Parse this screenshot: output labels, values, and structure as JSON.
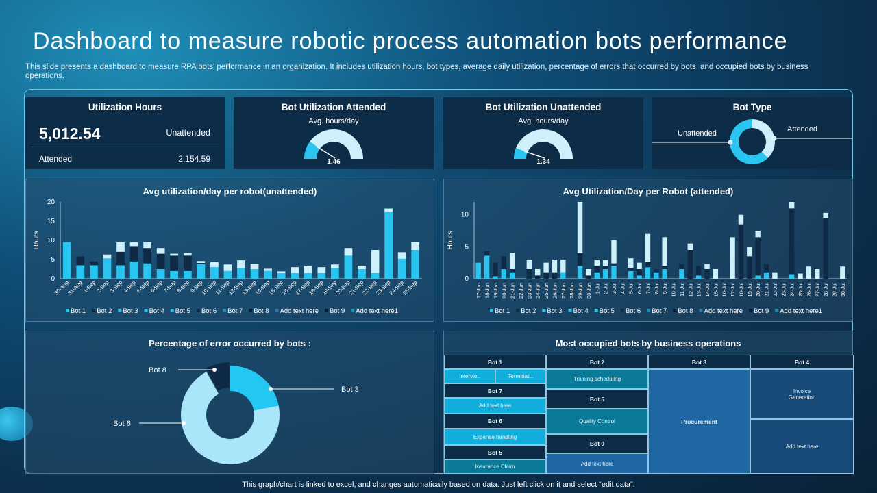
{
  "title": "Dashboard to measure robotic process automation bots performance",
  "subtitle": "This slide presents a dashboard to measure RPA bots' performance in an organization. It includes utilization hours, bot types, average daily utilization, percentage of errors that occurred by bots, and occupied bots by business operations.",
  "colors": {
    "cyan": "#29c4ef",
    "dark": "#0e2a47",
    "light": "#cdf0fb",
    "card": "#0d2c48"
  },
  "utilization": {
    "title": "Utilization Hours",
    "total": "5,012.54",
    "unattended_label": "Unattended",
    "attended_label": "Attended",
    "attended_value": "2,154.59"
  },
  "attended": {
    "title": "Bot Utilization Attended",
    "subtitle": "Avg. hours/day",
    "value": "1.46",
    "fill": 0.2
  },
  "unattended": {
    "title": "Bot Utilization Unattended",
    "subtitle": "Avg. hours/day",
    "value": "1.34",
    "fill": 0.12
  },
  "bot_type": {
    "title": "Bot Type",
    "slices": [
      {
        "label": "Attended",
        "pct": 38
      },
      {
        "label": "Unattended",
        "pct": 62
      }
    ]
  },
  "legend": [
    "Bot 1",
    "Bot 2",
    "Bot 3",
    "Bot 4",
    "Bot 5",
    "Bot 6",
    "Bot 7",
    "Bot 8",
    "Add text here",
    "Bot 9",
    "Add text here1"
  ],
  "legend_colors": [
    "#29c4ef",
    "#0e2a47",
    "#29c4ef",
    "#29c4ef",
    "#29c4ef",
    "#0e2a47",
    "#1a8fb5",
    "#071c30",
    "#1e7fb0",
    "#071c30",
    "#1a8fb5"
  ],
  "chart_data": [
    {
      "type": "bar",
      "stacked": true,
      "title": "Avg utilization/day per robot(unattended)",
      "ylabel": "Hours",
      "ylim": [
        0,
        20
      ],
      "yticks": [
        0,
        5,
        10,
        15,
        20
      ],
      "categories": [
        "30-Aug",
        "31-Aug",
        "1-Sep",
        "2-Sep",
        "3-Sep",
        "4-Sep",
        "5-Sep",
        "6-Sep",
        "7-Sep",
        "8-Sep",
        "9-Sep",
        "10-Sep",
        "11-Sep",
        "12-Sep",
        "13-Sep",
        "14-Sep",
        "15-Sep",
        "16-Sep",
        "17-Sep",
        "18-Sep",
        "19-Sep",
        "20-Sep",
        "21-Sep",
        "22-Sep",
        "23-Sep",
        "24-Sep",
        "25-Sep"
      ],
      "stacks": [
        [
          9.5,
          0,
          0
        ],
        [
          3.5,
          2.3,
          0
        ],
        [
          3.5,
          1,
          0
        ],
        [
          5.3,
          0,
          1
        ],
        [
          3.5,
          3.5,
          2.5
        ],
        [
          4.5,
          4,
          1
        ],
        [
          4,
          4,
          1.5
        ],
        [
          2.5,
          4,
          1.5
        ],
        [
          2,
          4,
          0.5
        ],
        [
          2,
          4,
          0.7
        ],
        [
          3.8,
          0.3,
          0.5
        ],
        [
          3,
          0,
          1.3
        ],
        [
          2,
          0,
          1.7
        ],
        [
          2.8,
          0,
          2
        ],
        [
          2.5,
          0,
          1.4
        ],
        [
          2,
          0,
          0.6
        ],
        [
          1.5,
          0,
          0.4
        ],
        [
          1.5,
          0,
          1.5
        ],
        [
          1.5,
          0,
          1.9
        ],
        [
          1.5,
          0,
          1.5
        ],
        [
          2.8,
          0,
          0.9
        ],
        [
          6,
          0,
          2
        ],
        [
          2.5,
          0,
          0.9
        ],
        [
          1.5,
          0,
          6
        ],
        [
          17.5,
          0,
          0.8
        ],
        [
          5.2,
          0,
          1.7
        ],
        [
          7.5,
          0,
          2
        ]
      ]
    },
    {
      "type": "bar",
      "stacked": true,
      "title": "Avg Utilization/Day per Robot (attended)",
      "ylabel": "Hours",
      "ylim": [
        0,
        12
      ],
      "yticks": [
        0,
        5,
        10
      ],
      "categories": [
        "17-Jun",
        "18-Jun",
        "19-Jun",
        "20-Jun",
        "21-Jun",
        "22-Jun",
        "23-Jun",
        "24-Jun",
        "25-Jun",
        "26-Jun",
        "27-Jun",
        "28-Jun",
        "29-Jun",
        "30-Jun",
        "1-Jul",
        "2-Jul",
        "3-Jul",
        "4-Jul",
        "5-Jul",
        "6-Jul",
        "7-Jul",
        "8-Jul",
        "9-Jul",
        "10-Jul",
        "11-Jul",
        "12-Jul",
        "13-Jul",
        "14-Jul",
        "15-Jul",
        "16-Jul",
        "17-Jul",
        "18-Jul",
        "19-Jul",
        "20-Jul",
        "21-Jul",
        "22-Jul",
        "23-Jul",
        "24-Jul",
        "25-Jul",
        "26-Jul",
        "27-Jul",
        "28-Jul",
        "29-Jul",
        "30-Jul"
      ],
      "stacks": [
        [
          2.5,
          0,
          0
        ],
        [
          3.6,
          0.7,
          0
        ],
        [
          0.4,
          2.1,
          0
        ],
        [
          1.5,
          2,
          0
        ],
        [
          1,
          0.5,
          2.5
        ],
        [
          0,
          0,
          0
        ],
        [
          0,
          1.5,
          1.5
        ],
        [
          0,
          0.5,
          1
        ],
        [
          0,
          1,
          1.5
        ],
        [
          0,
          1,
          2
        ],
        [
          1,
          0,
          2
        ],
        [
          0,
          0,
          0
        ],
        [
          2,
          2,
          8
        ],
        [
          0,
          0.5,
          1
        ],
        [
          1,
          1,
          1
        ],
        [
          1.5,
          0.5,
          0.9
        ],
        [
          2,
          0.4,
          3.6
        ],
        [
          0,
          0,
          0
        ],
        [
          1.2,
          0.5,
          1.5
        ],
        [
          0.5,
          1,
          1
        ],
        [
          1.8,
          0.8,
          4.4
        ],
        [
          1,
          0.5,
          0
        ],
        [
          1.5,
          0.5,
          4.5
        ],
        [
          0,
          0,
          0
        ],
        [
          1.5,
          0.8,
          0
        ],
        [
          0,
          4.5,
          1
        ],
        [
          0.5,
          1.5,
          0
        ],
        [
          0,
          1.5,
          0.8
        ],
        [
          0,
          0,
          1.5
        ],
        [
          0,
          0,
          0
        ],
        [
          0,
          0,
          6.5
        ],
        [
          0,
          8.5,
          1.5
        ],
        [
          0,
          3.5,
          1.5
        ],
        [
          0.5,
          6,
          1
        ],
        [
          1,
          1.3,
          0
        ],
        [
          0,
          0,
          1
        ],
        [
          0,
          0,
          0
        ],
        [
          0.7,
          10.3,
          1
        ],
        [
          0,
          0,
          0.8
        ],
        [
          0,
          0,
          1.9
        ],
        [
          0,
          0,
          1.5
        ],
        [
          0,
          9.5,
          0.8
        ],
        [
          0,
          0,
          0
        ],
        [
          0,
          0,
          1.9
        ]
      ]
    },
    {
      "type": "pie",
      "title": "Percentage of error occurred by bots :",
      "slices": [
        {
          "label": "Bot 3",
          "pct": 22
        },
        {
          "label": "Bot 6",
          "pct": 70
        },
        {
          "label": "Bot 8",
          "pct": 8
        }
      ]
    }
  ],
  "treemap": {
    "title": "Most occupied bots by business operations",
    "cells": [
      {
        "text": "Bot 1",
        "kind": "h"
      },
      {
        "text": "Bot 2",
        "kind": "h"
      },
      {
        "text": "Bot 3",
        "kind": "h"
      },
      {
        "text": "Bot 4",
        "kind": "h"
      },
      {
        "text": "Intervie..",
        "color": "#12aedb"
      },
      {
        "text": "Terminati..",
        "color": "#12aedb"
      },
      {
        "text": "Bot 7",
        "kind": "h"
      },
      {
        "text": "Add text here",
        "color": "#12aedb"
      },
      {
        "text": "Bot 6",
        "kind": "h"
      },
      {
        "text": "Expense handling",
        "color": "#12aedb"
      },
      {
        "text": "Bot 5",
        "kind": "h"
      },
      {
        "text": "Insurance Claim",
        "color": "#0a7a98"
      },
      {
        "text": "Training scheduling",
        "color": "#0a7a98"
      },
      {
        "text": "Bot 5",
        "kind": "h"
      },
      {
        "text": "Quality Control",
        "color": "#0a7a98"
      },
      {
        "text": "Bot 9",
        "kind": "h"
      },
      {
        "text": "Add text here",
        "color": "#1f67a3"
      },
      {
        "text": "Procurement",
        "color": "#1f67a3"
      },
      {
        "text": "Invoice Generation",
        "color": "#174a78"
      },
      {
        "text": "Add text here",
        "color": "#174a78"
      }
    ]
  },
  "footer": "This graph/chart is linked to excel, and changes automatically based on data. Just left click on it and select “edit data”."
}
